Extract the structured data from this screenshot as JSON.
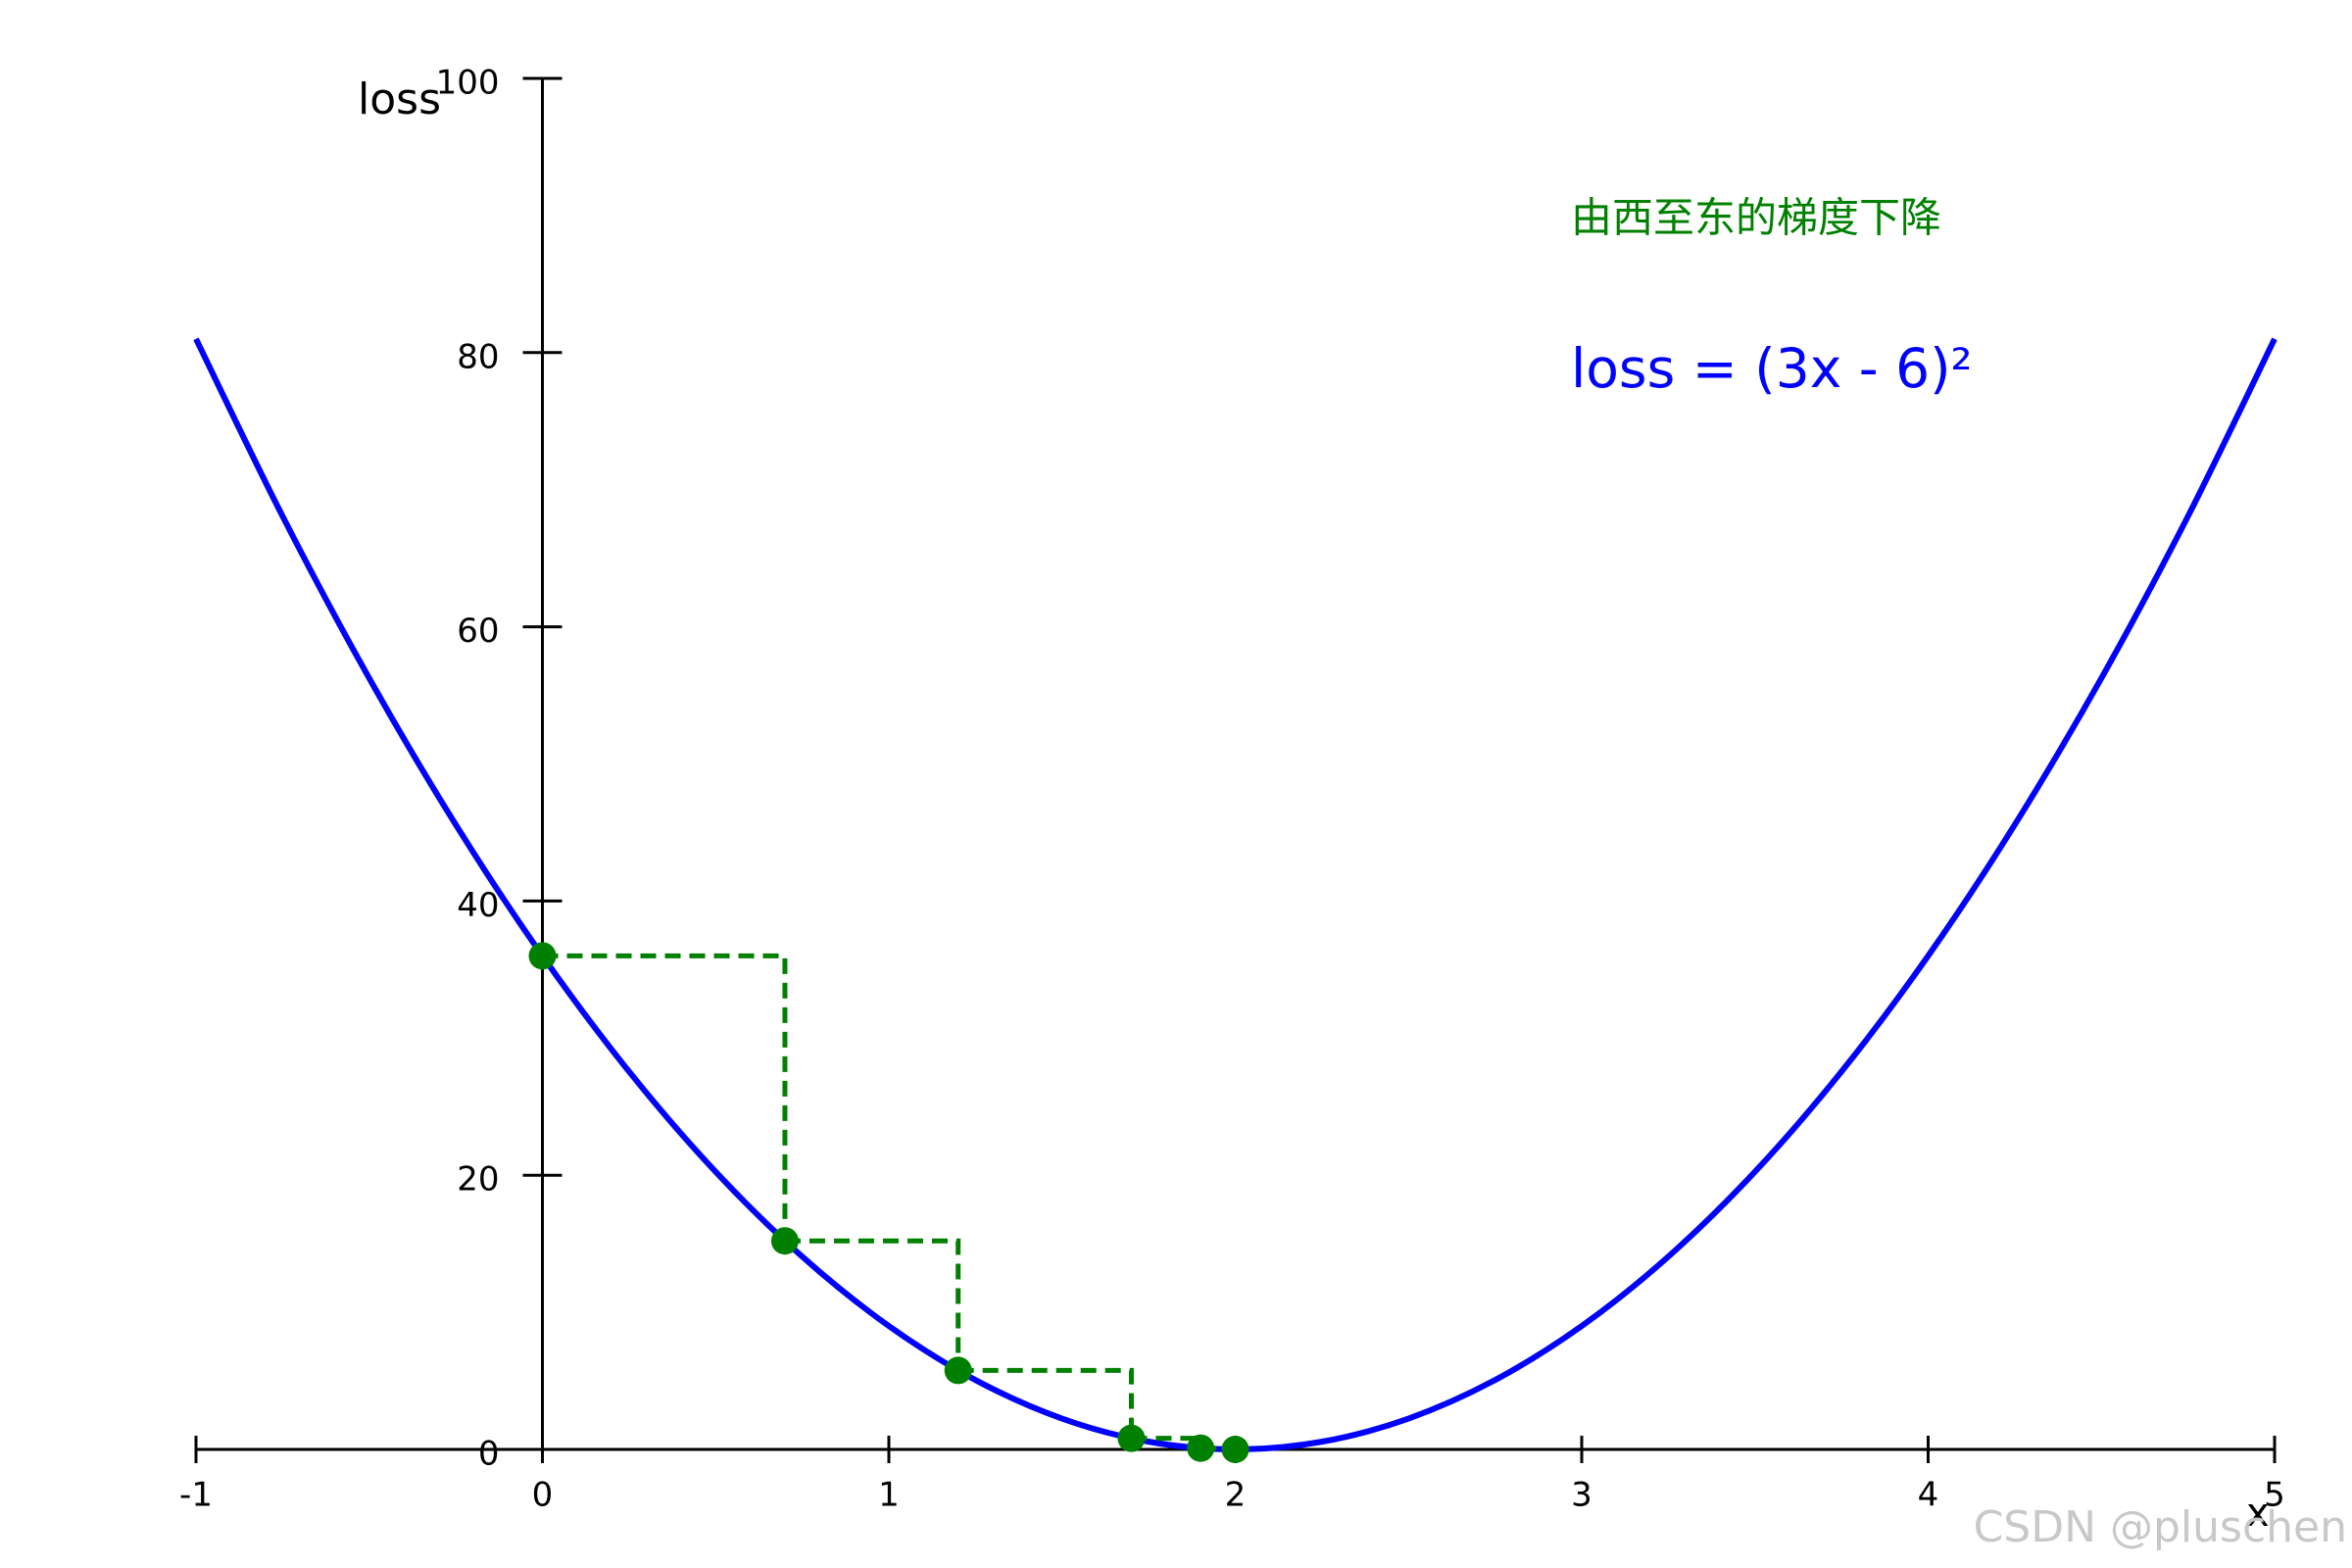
{
  "chart_data": {
    "type": "line",
    "x_label": "x",
    "y_label": "loss",
    "annotations": [
      {
        "text": "由西至东的梯度下降",
        "color": "#008000"
      },
      {
        "text": "loss = (3x - 6)²",
        "color": "#0000ff"
      }
    ],
    "xlim": [
      -1,
      5
    ],
    "ylim": [
      0,
      100
    ],
    "xticks": [
      -1,
      0,
      1,
      2,
      3,
      4,
      5
    ],
    "yticks": [
      0,
      20,
      40,
      60,
      80,
      100
    ],
    "grid": false,
    "series": [
      {
        "color": "#0000ff",
        "markers": false,
        "steps": false,
        "x": [
          -1,
          -0.75,
          -0.5,
          -0.25,
          0,
          0.25,
          0.5,
          0.75,
          1,
          1.25,
          1.5,
          1.75,
          2,
          2.25,
          2.5,
          2.75,
          3,
          3.25,
          3.5,
          3.75,
          4,
          4.25,
          4.5,
          4.75,
          5
        ],
        "values": [
          81,
          68.0625,
          56.25,
          45.5625,
          36,
          27.5625,
          20.25,
          14.0625,
          9,
          5.0625,
          2.25,
          0.5625,
          0,
          0.5625,
          2.25,
          5.0625,
          9,
          14.0625,
          20.25,
          27.5625,
          36,
          45.5625,
          56.25,
          68.0625,
          81
        ]
      },
      {
        "color": "#008000",
        "markers": true,
        "steps": true,
        "x": [
          0,
          0.7,
          1.2,
          1.7,
          1.9,
          2.0
        ],
        "values": [
          36,
          15.21,
          5.76,
          0.81,
          0.09,
          0
        ]
      }
    ]
  },
  "watermark": "CSDN @pluschen"
}
